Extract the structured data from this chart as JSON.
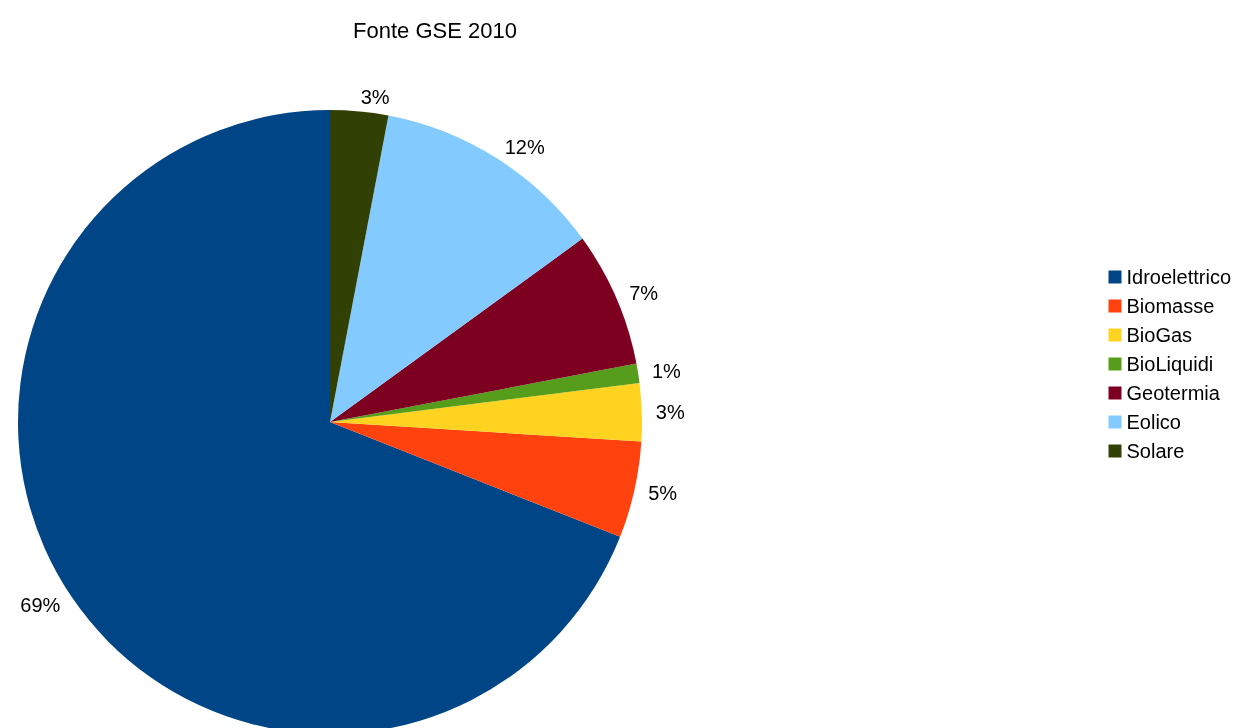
{
  "chart_data": {
    "type": "pie",
    "title": "Fonte GSE 2010",
    "categories": [
      "Idroelettrico",
      "Biomasse",
      "BioGas",
      "BioLiquidi",
      "Geotermia",
      "Eolico",
      "Solare"
    ],
    "values": [
      69,
      5,
      3,
      1,
      7,
      12,
      3
    ],
    "value_labels": [
      "69%",
      "5%",
      "3%",
      "1%",
      "7%",
      "12%",
      "3%"
    ],
    "colors": [
      "#004586",
      "#ff420e",
      "#ffd320",
      "#579d1c",
      "#7e0021",
      "#83caff",
      "#314004"
    ],
    "legend": "right"
  }
}
